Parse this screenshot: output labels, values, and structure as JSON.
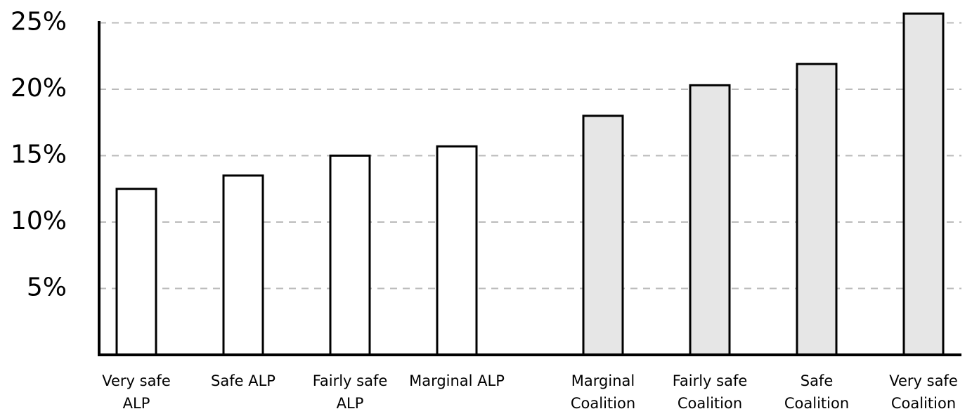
{
  "chart_data": {
    "type": "bar",
    "categories": [
      "Very safe ALP",
      "Safe ALP",
      "Fairly safe ALP",
      "Marginal ALP",
      "Marginal Coalition",
      "Fairly safe Coalition",
      "Safe Coalition",
      "Very safe Coalition"
    ],
    "values": [
      12.5,
      13.5,
      15.0,
      15.7,
      18.0,
      20.3,
      21.9,
      25.7
    ],
    "colors": [
      "#ffffff",
      "#ffffff",
      "#ffffff",
      "#ffffff",
      "#e6e6e6",
      "#e6e6e6",
      "#e6e6e6",
      "#e6e6e6"
    ],
    "ylim": [
      0,
      26
    ],
    "yticks": [
      {
        "value": 5,
        "label": "5%"
      },
      {
        "value": 10,
        "label": "10%"
      },
      {
        "value": 15,
        "label": "15%"
      },
      {
        "value": 20,
        "label": "20%"
      },
      {
        "value": 25,
        "label": "25%"
      }
    ],
    "grid": true
  }
}
